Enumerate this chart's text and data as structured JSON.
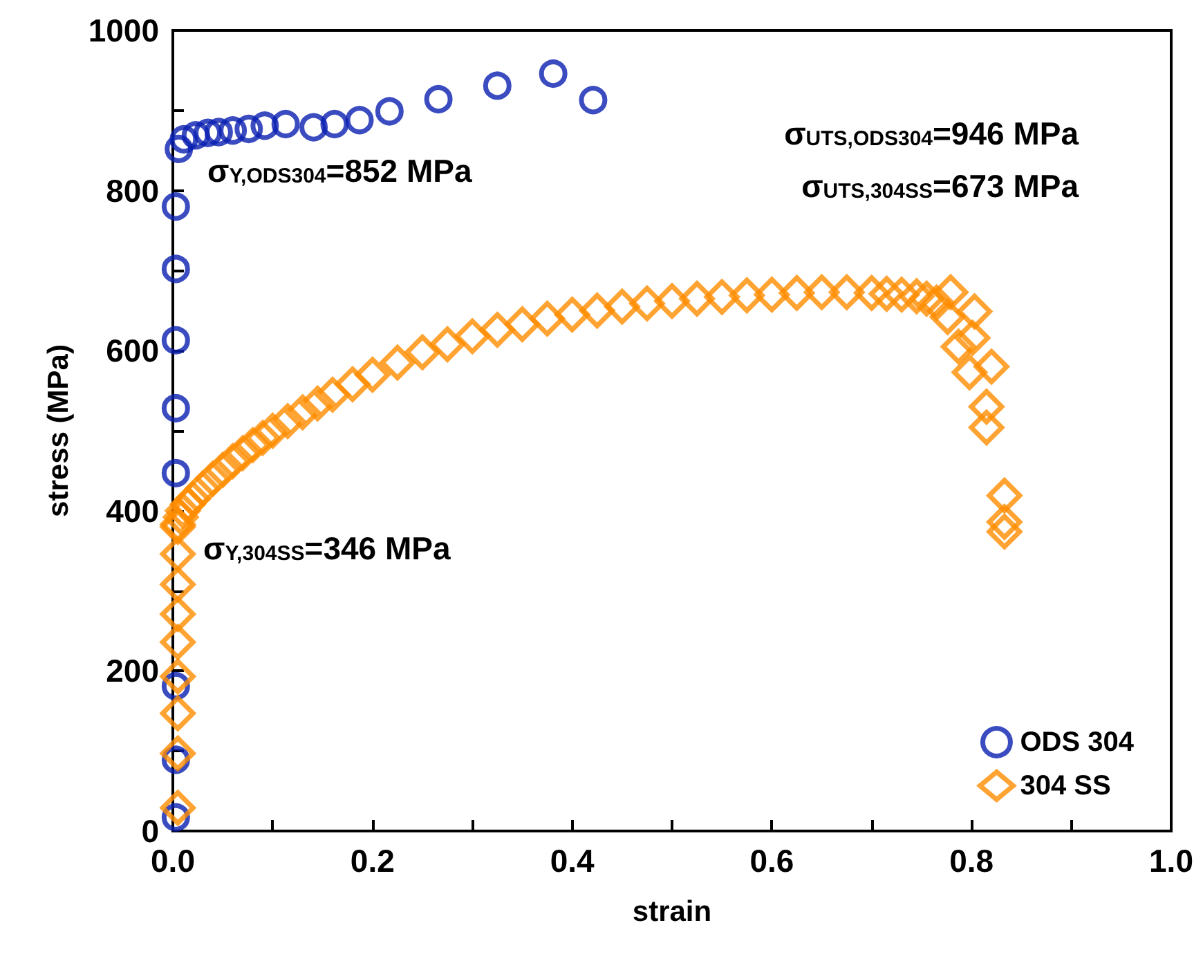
{
  "chart_data": {
    "type": "scatter",
    "xlabel": "strain",
    "ylabel": "stress (MPa)",
    "xlim": [
      0,
      1
    ],
    "ylim": [
      0,
      1000
    ],
    "xticks": [
      {
        "value": 0,
        "label": "0.0"
      },
      {
        "value": 0.1,
        "label": null
      },
      0.2,
      {
        "value": 0.3,
        "label": null
      },
      0.4,
      {
        "value": 0.5,
        "label": null
      },
      0.6,
      {
        "value": 0.7,
        "label": null
      },
      0.8,
      {
        "value": 0.9,
        "label": null
      },
      {
        "value": 1,
        "label": "1.0"
      }
    ],
    "yticks": [
      0,
      {
        "value": 100,
        "label": null
      },
      200,
      {
        "value": 300,
        "label": null
      },
      400,
      {
        "value": 500,
        "label": null
      },
      600,
      {
        "value": 700,
        "label": null
      },
      800,
      {
        "value": 900,
        "label": null
      },
      1000
    ],
    "grid": false,
    "legend": "bottom right",
    "series": [
      {
        "name": "ODS 304",
        "color": "#0a1fb0",
        "marker": "circle",
        "x": [
          0.003,
          0.003,
          0.003,
          0.003,
          0.003,
          0.003,
          0.003,
          0.003,
          0.006,
          0.011,
          0.023,
          0.035,
          0.046,
          0.06,
          0.076,
          0.092,
          0.113,
          0.141,
          0.162,
          0.187,
          0.217,
          0.266,
          0.325,
          0.381,
          0.421
        ],
        "values": [
          17,
          89,
          181,
          447,
          528,
          613,
          702,
          780,
          852,
          864,
          869,
          872,
          873,
          875,
          877,
          881,
          883,
          879,
          883,
          888,
          899,
          914,
          931,
          946,
          913
        ]
      },
      {
        "name": "304 SS",
        "color": "#ff8c00",
        "marker": "diamond",
        "x": [
          0.005,
          0.005,
          0.005,
          0.005,
          0.005,
          0.005,
          0.005,
          0.005,
          0.005,
          0.005,
          0.008,
          0.01,
          0.015,
          0.02,
          0.03,
          0.04,
          0.05,
          0.06,
          0.07,
          0.08,
          0.09,
          0.1,
          0.115,
          0.13,
          0.145,
          0.16,
          0.18,
          0.2,
          0.225,
          0.25,
          0.275,
          0.3,
          0.325,
          0.35,
          0.375,
          0.4,
          0.425,
          0.45,
          0.475,
          0.5,
          0.525,
          0.55,
          0.575,
          0.6,
          0.625,
          0.65,
          0.675,
          0.7,
          0.715,
          0.73,
          0.745,
          0.755,
          0.765,
          0.776,
          0.779,
          0.787,
          0.798,
          0.801,
          0.803,
          0.815,
          0.815,
          0.82,
          0.833,
          0.833,
          0.833
        ],
        "values": [
          29,
          97,
          147,
          193,
          236,
          271,
          308,
          346,
          383,
          380,
          392,
          400,
          408,
          415,
          428,
          440,
          451,
          462,
          472,
          482,
          491,
          500,
          512,
          523,
          534,
          545,
          558,
          570,
          585,
          598,
          608,
          618,
          626,
          633,
          640,
          645,
          650,
          655,
          659,
          662,
          665,
          667,
          669,
          670,
          672,
          673,
          673,
          672,
          671,
          670,
          668,
          665,
          660,
          642,
          673,
          605,
          573,
          616,
          649,
          530,
          504,
          580,
          419,
          386,
          374
        ]
      }
    ],
    "annotations": [
      "σ$_{Y,ODS304}$=852 MPa",
      "σ$_{UTS,ODS304}$=946 MPa",
      "σ$_{UTS,304SS}$=673 MPa",
      "σ$_{Y,304SS}$=346 MPa"
    ]
  }
}
